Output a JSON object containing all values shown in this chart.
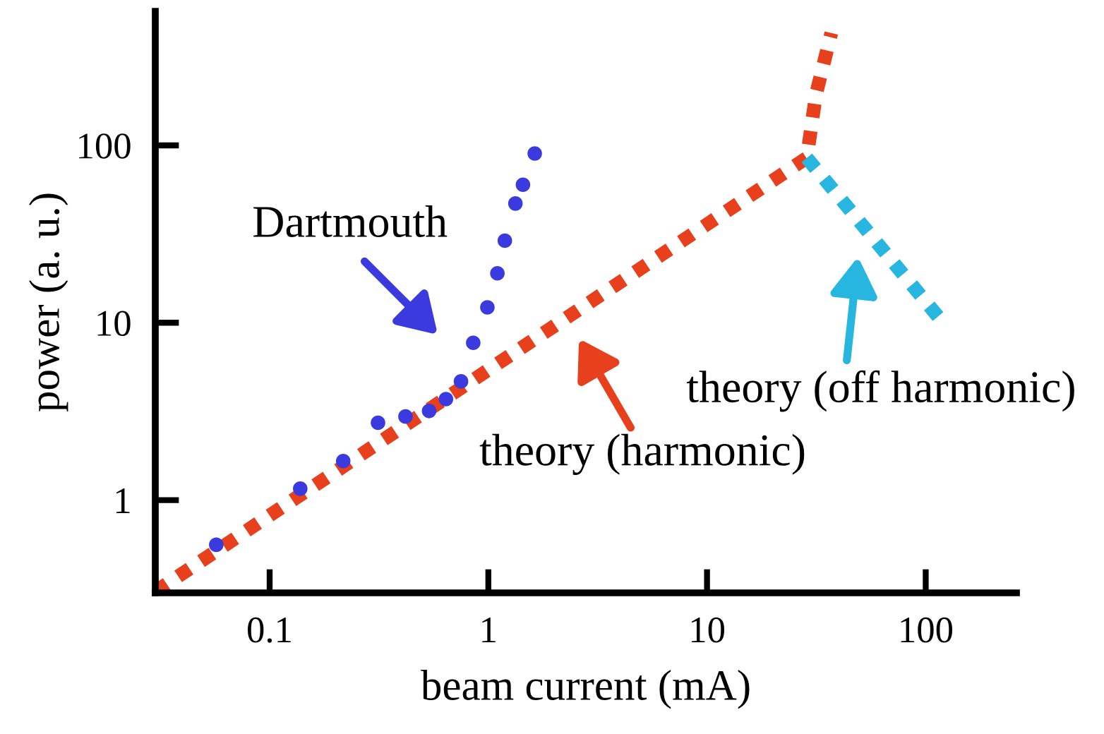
{
  "chart_data": {
    "type": "line",
    "xlabel": "beam current (mA)",
    "ylabel": "power (a. u.)",
    "log": "xy",
    "xlim": [
      0.03,
      260
    ],
    "ylim": [
      0.3,
      570
    ],
    "xticks": [
      0.1,
      1,
      10,
      100
    ],
    "yticks": [
      1,
      10,
      100
    ],
    "grid": false,
    "legend": false,
    "series": [
      {
        "type": "scatter",
        "color": "#3a3adf",
        "marker": "circle",
        "x": [
          0.057,
          0.138,
          0.217,
          0.313,
          0.418,
          0.536,
          0.64,
          0.75,
          0.853,
          0.99,
          1.1,
          1.19,
          1.33,
          1.44,
          1.63
        ],
        "values": [
          0.56,
          1.16,
          1.66,
          2.73,
          2.96,
          3.18,
          3.71,
          4.67,
          7.7,
          12.2,
          19,
          29,
          47,
          60,
          90
        ]
      },
      {
        "color": "#e8401c",
        "line_style": "dotted",
        "x": [
          0.03,
          28.6,
          31.5,
          37
        ],
        "values": [
          0.305,
          85,
          194,
          430
        ]
      },
      {
        "type": "line",
        "color": "#27b6e0",
        "line_style": "dotted",
        "x": [
          28.6,
          117
        ],
        "values": [
          85,
          10.4
        ]
      }
    ],
    "annotations": [
      "Dartmouth",
      "theory (harmonic)",
      "theory (off harmonic)"
    ]
  }
}
